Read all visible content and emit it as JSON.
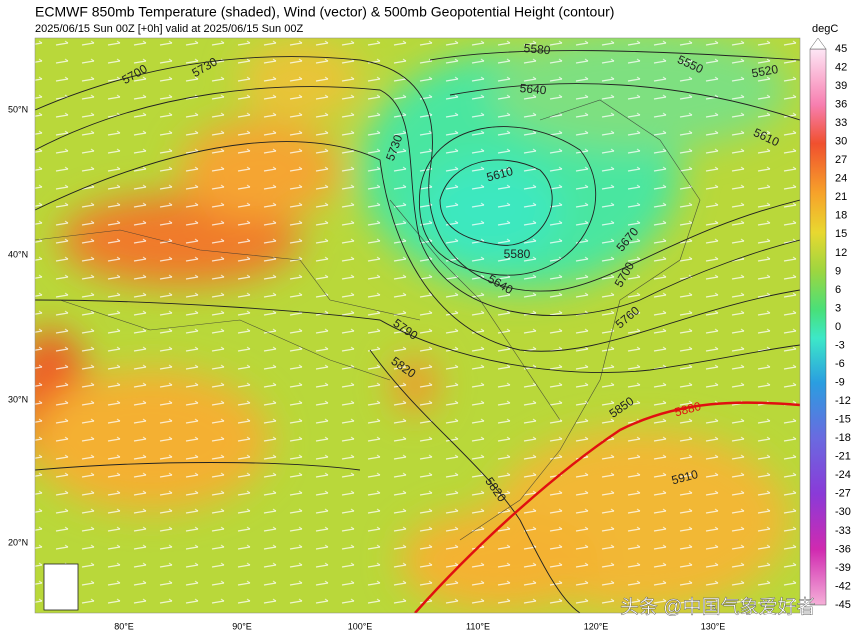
{
  "header": {
    "title": "ECMWF 850mb Temperature (shaded), Wind (vector) & 500mb Geopotential Height (contour)",
    "subtitle": "2025/06/15 Sun 00Z [+0h] valid at 2025/06/15 Sun 00Z"
  },
  "map": {
    "lat_labels": [
      "50°N",
      "40°N",
      "30°N",
      "20°N"
    ],
    "lon_labels": [
      "80°E",
      "90°E",
      "100°E",
      "110°E",
      "120°E",
      "130°E"
    ],
    "contour_labels": [
      "5700",
      "5730",
      "5580",
      "5550",
      "5520",
      "5640",
      "5730",
      "5610",
      "5610",
      "5580",
      "5640",
      "5670",
      "5700",
      "5760",
      "5790",
      "5820",
      "5850",
      "5880",
      "5910",
      "5820"
    ]
  },
  "colorbar": {
    "unit": "degC",
    "ticks": [
      45,
      42,
      39,
      36,
      33,
      30,
      27,
      24,
      21,
      18,
      15,
      12,
      9,
      6,
      3,
      0,
      -3,
      -6,
      -9,
      -12,
      -15,
      -18,
      -21,
      -24,
      -27,
      -30,
      -33,
      -36,
      -39,
      -42,
      -45
    ]
  },
  "watermark": "头条 @中国气象爱好者"
}
